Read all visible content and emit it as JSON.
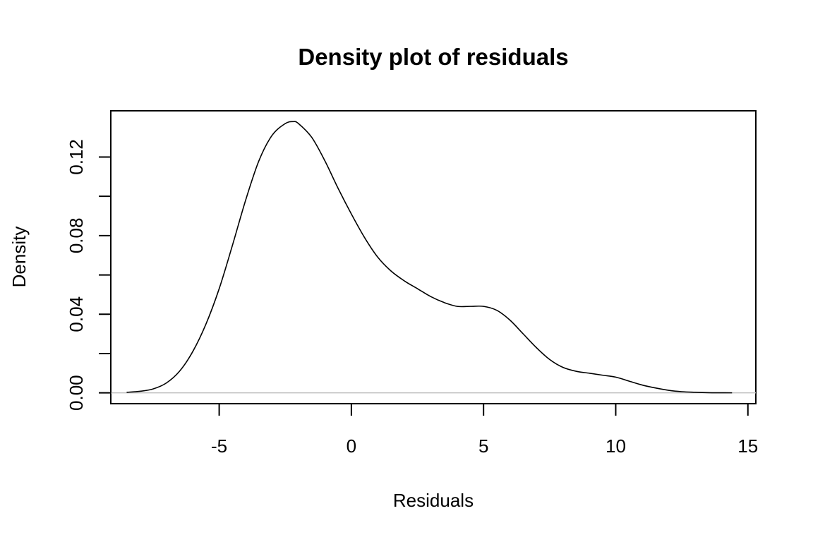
{
  "chart_data": {
    "type": "line",
    "title": "Density plot of residuals",
    "xlabel": "Residuals",
    "ylabel": "Density",
    "xlim": [
      -9.1,
      15.3
    ],
    "ylim": [
      -0.0055,
      0.1435
    ],
    "x_ticks": [
      -5,
      0,
      5,
      10,
      15
    ],
    "x_tick_labels": [
      "-5",
      "0",
      "5",
      "10",
      "15"
    ],
    "y_ticks": [
      0.0,
      0.02,
      0.04,
      0.06,
      0.08,
      0.1,
      0.12
    ],
    "y_tick_labels": [
      "0.00",
      "",
      "0.04",
      "",
      "0.08",
      "",
      "0.12"
    ],
    "baseline": 0,
    "baseline_color": "#bfbfbf",
    "line_color": "#000000",
    "grid": false,
    "legend": "none",
    "series": [
      {
        "x": [
          -8.5,
          -8.0,
          -7.5,
          -7.0,
          -6.5,
          -6.0,
          -5.5,
          -5.0,
          -4.5,
          -4.0,
          -3.5,
          -3.0,
          -2.5,
          -2.2,
          -2.0,
          -1.5,
          -1.0,
          -0.5,
          0.0,
          0.5,
          1.0,
          1.5,
          2.0,
          2.5,
          3.0,
          3.5,
          4.0,
          4.5,
          5.0,
          5.5,
          6.0,
          6.5,
          7.0,
          7.5,
          8.0,
          8.5,
          9.0,
          9.5,
          10.0,
          10.5,
          11.0,
          11.5,
          12.0,
          12.5,
          13.0,
          13.5,
          14.0,
          14.4
        ],
        "y": [
          0.0003,
          0.0008,
          0.002,
          0.005,
          0.011,
          0.021,
          0.035,
          0.053,
          0.075,
          0.098,
          0.118,
          0.131,
          0.137,
          0.138,
          0.137,
          0.13,
          0.118,
          0.104,
          0.091,
          0.079,
          0.069,
          0.062,
          0.057,
          0.053,
          0.049,
          0.046,
          0.044,
          0.044,
          0.044,
          0.042,
          0.037,
          0.03,
          0.023,
          0.017,
          0.013,
          0.011,
          0.01,
          0.009,
          0.008,
          0.006,
          0.004,
          0.0025,
          0.0013,
          0.0006,
          0.0003,
          0.0001,
          5e-05,
          2e-05
        ]
      }
    ]
  }
}
